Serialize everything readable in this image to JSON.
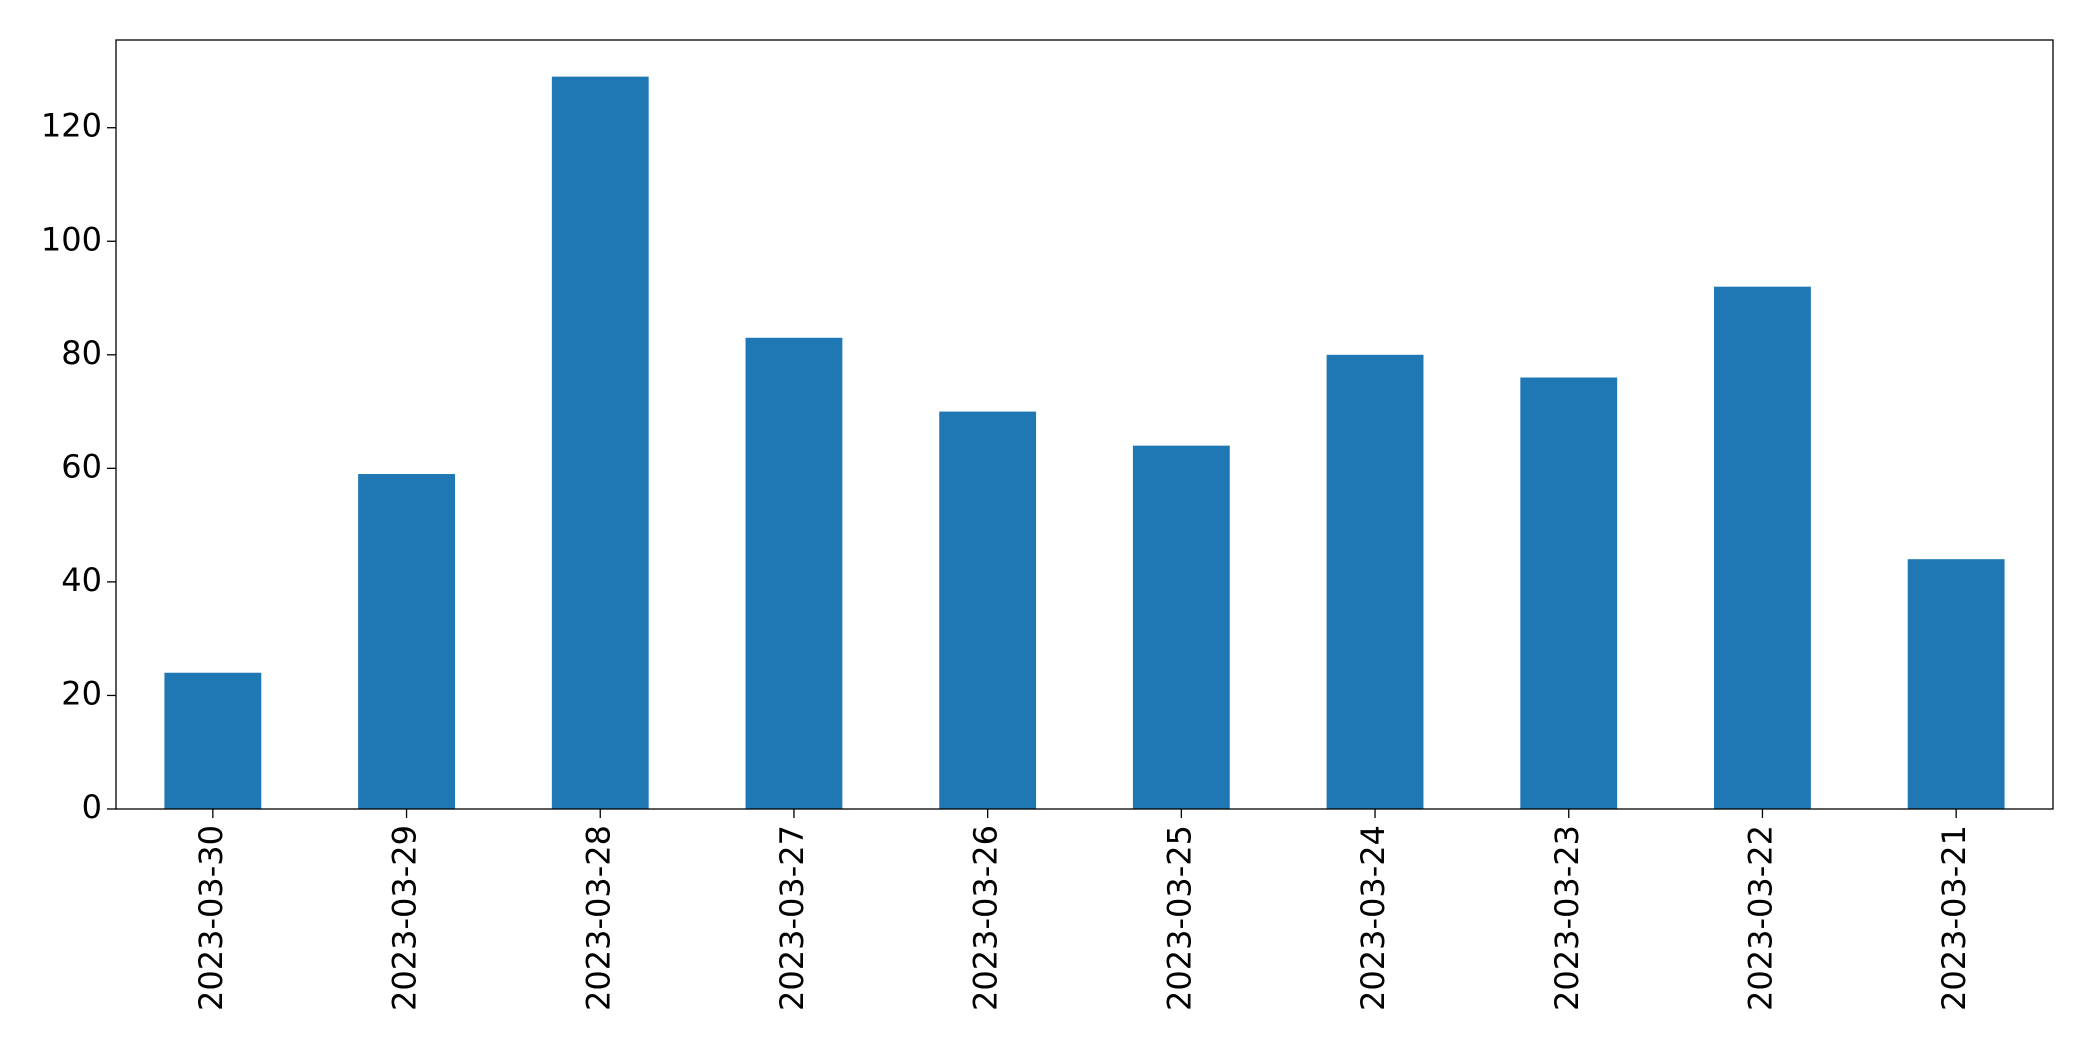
{
  "chart_data": {
    "type": "bar",
    "categories": [
      "2023-03-30",
      "2023-03-29",
      "2023-03-28",
      "2023-03-27",
      "2023-03-26",
      "2023-03-25",
      "2023-03-24",
      "2023-03-23",
      "2023-03-22",
      "2023-03-21"
    ],
    "values": [
      24,
      59,
      129,
      83,
      70,
      64,
      80,
      76,
      92,
      44
    ],
    "color": "#1f77b4",
    "ylim": [
      0,
      135.45
    ],
    "yticks": [
      0,
      20,
      40,
      60,
      80,
      100,
      120
    ],
    "grid": false
  }
}
